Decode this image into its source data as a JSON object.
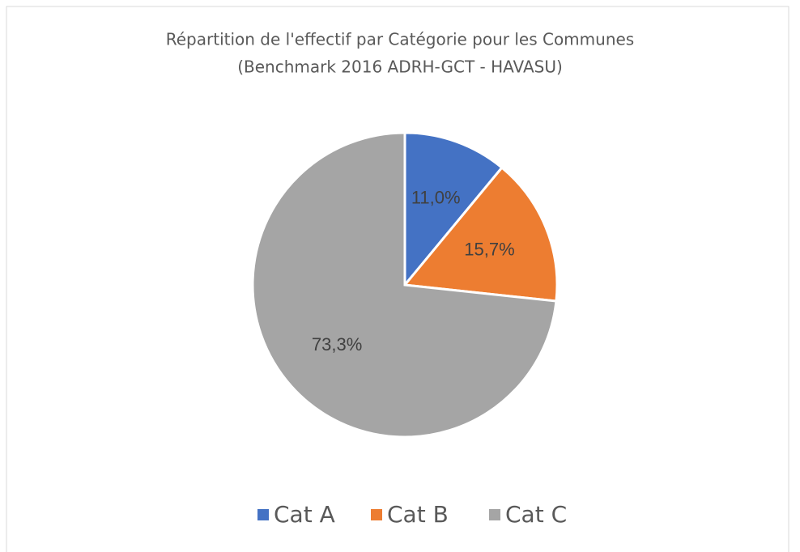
{
  "chart_data": {
    "type": "pie",
    "title": [
      "Répartition de l'effectif par Catégorie pour  les Communes",
      "(Benchmark 2016 ADRH-GCT - HAVASU)"
    ],
    "categories": [
      "Cat A",
      "Cat B",
      "Cat C"
    ],
    "values": [
      11.0,
      15.7,
      73.3
    ],
    "value_labels": [
      "11,0%",
      "15,7%",
      "73,3%"
    ],
    "colors": [
      "#4472c4",
      "#ed7d31",
      "#a5a5a5"
    ],
    "legend": "bottom"
  }
}
